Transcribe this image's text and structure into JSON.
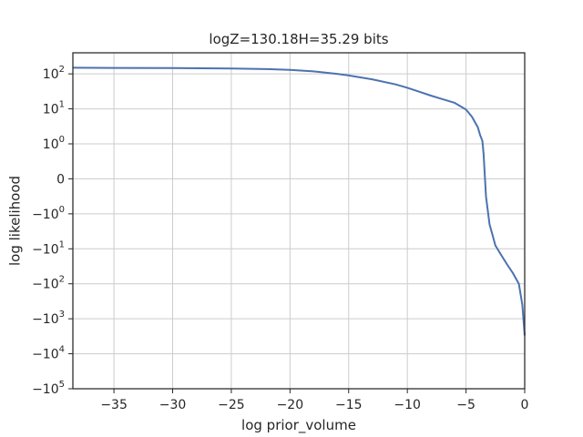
{
  "chart_data": {
    "type": "line",
    "title": "logZ=130.18H=35.29 bits",
    "xlabel": "log prior_volume",
    "ylabel": "log likelihood",
    "xlim": [
      -38.5,
      0
    ],
    "x_ticks": [
      {
        "value": -35,
        "label": "−35"
      },
      {
        "value": -30,
        "label": "−30"
      },
      {
        "value": -25,
        "label": "−25"
      },
      {
        "value": -20,
        "label": "−20"
      },
      {
        "value": -15,
        "label": "−15"
      },
      {
        "value": -10,
        "label": "−10"
      },
      {
        "value": -5,
        "label": "−5"
      },
      {
        "value": 0,
        "label": "0"
      }
    ],
    "y_scale": "symlog",
    "y_linthresh": 1,
    "ylim": [
      -100000,
      400
    ],
    "y_ticks": [
      {
        "value": 100,
        "base": "10",
        "exp": "2",
        "sign": ""
      },
      {
        "value": 10,
        "base": "10",
        "exp": "1",
        "sign": ""
      },
      {
        "value": 1,
        "base": "10",
        "exp": "0",
        "sign": ""
      },
      {
        "value": 0,
        "base": "0",
        "exp": "",
        "sign": ""
      },
      {
        "value": -1,
        "base": "10",
        "exp": "0",
        "sign": "−"
      },
      {
        "value": -10,
        "base": "10",
        "exp": "1",
        "sign": "−"
      },
      {
        "value": -100,
        "base": "10",
        "exp": "2",
        "sign": "−"
      },
      {
        "value": -1000,
        "base": "10",
        "exp": "3",
        "sign": "−"
      },
      {
        "value": -10000,
        "base": "10",
        "exp": "4",
        "sign": "−"
      },
      {
        "value": -100000,
        "base": "10",
        "exp": "5",
        "sign": "−"
      }
    ],
    "grid": true,
    "series": [
      {
        "color": "#4c72b0",
        "x": [
          -38.5,
          -35,
          -30,
          -25,
          -22,
          -20,
          -18,
          -16,
          -15,
          -13,
          -11,
          -10,
          -9,
          -8,
          -7,
          -6,
          -5.5,
          -5,
          -4.5,
          -4,
          -3.8,
          -3.6,
          -3.5,
          -3.3,
          -3,
          -2.7,
          -2.5,
          -2,
          -1.5,
          -1,
          -0.5,
          -0.2,
          0
        ],
        "y": [
          150,
          148,
          146,
          142,
          137,
          130,
          118,
          100,
          90,
          70,
          50,
          40,
          31,
          24,
          19,
          15,
          12,
          9.5,
          6,
          3,
          1.8,
          1.2,
          0.7,
          -0.5,
          -2,
          -4.5,
          -8,
          -15,
          -28,
          -50,
          -100,
          -400,
          -3000
        ]
      }
    ]
  }
}
